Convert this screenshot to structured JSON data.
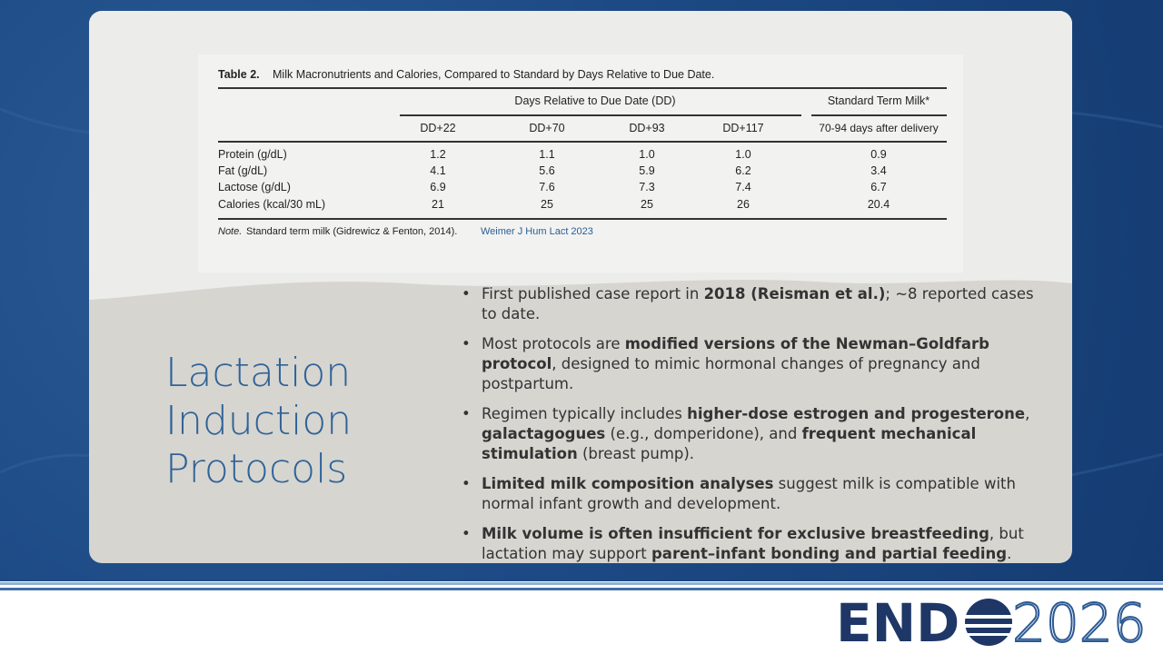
{
  "table": {
    "title_label": "Table 2.",
    "title": "Milk Macronutrients and Calories, Compared to Standard by Days Relative to Due Date.",
    "group_headers": [
      "Days Relative to Due Date (DD)",
      "Standard Term Milk*"
    ],
    "columns": [
      "DD+22",
      "DD+70",
      "DD+93",
      "DD+117",
      "70-94 days after delivery"
    ],
    "rows": [
      [
        "Protein (g/dL)",
        "1.2",
        "1.1",
        "1.0",
        "1.0",
        "0.9"
      ],
      [
        "Fat (g/dL)",
        "4.1",
        "5.6",
        "5.9",
        "6.2",
        "3.4"
      ],
      [
        "Lactose (g/dL)",
        "6.9",
        "7.6",
        "7.3",
        "7.4",
        "6.7"
      ],
      [
        "Calories (kcal/30 mL)",
        "21",
        "25",
        "25",
        "26",
        "20.4"
      ]
    ],
    "note_label": "Note.",
    "note": "Standard term milk (Gidrewicz & Fenton, 2014).",
    "citation": "Weimer J Hum Lact 2023"
  },
  "heading": [
    "Lactation",
    "Induction",
    "Protocols"
  ],
  "bullets": [
    [
      {
        "text": "First published case report in ",
        "bold": false
      },
      {
        "text": "2018 (Reisman et al.)",
        "bold": true
      },
      {
        "text": "; ~8 reported cases to date.",
        "bold": false
      }
    ],
    [
      {
        "text": "Most protocols are ",
        "bold": false
      },
      {
        "text": "modified versions of the Newman–Goldfarb protocol",
        "bold": true
      },
      {
        "text": ", designed to mimic hormonal changes of pregnancy and postpartum.",
        "bold": false
      }
    ],
    [
      {
        "text": "Regimen typically includes ",
        "bold": false
      },
      {
        "text": "higher-dose estrogen and progesterone",
        "bold": true
      },
      {
        "text": ", ",
        "bold": false
      },
      {
        "text": "galactagogues",
        "bold": true
      },
      {
        "text": " (e.g., domperidone), and ",
        "bold": false
      },
      {
        "text": "frequent mechanical stimulation",
        "bold": true
      },
      {
        "text": " (breast pump).",
        "bold": false
      }
    ],
    [
      {
        "text": "Limited milk composition analyses",
        "bold": true
      },
      {
        "text": " suggest milk is compatible with normal infant growth and development.",
        "bold": false
      }
    ],
    [
      {
        "text": "Milk volume is often insufficient for exclusive breastfeeding",
        "bold": true
      },
      {
        "text": ", but lactation may support ",
        "bold": false
      },
      {
        "text": "parent–infant bonding and partial feeding",
        "bold": true
      },
      {
        "text": ".",
        "bold": false
      }
    ]
  ],
  "logo": {
    "left": "END",
    "right": "2026"
  }
}
